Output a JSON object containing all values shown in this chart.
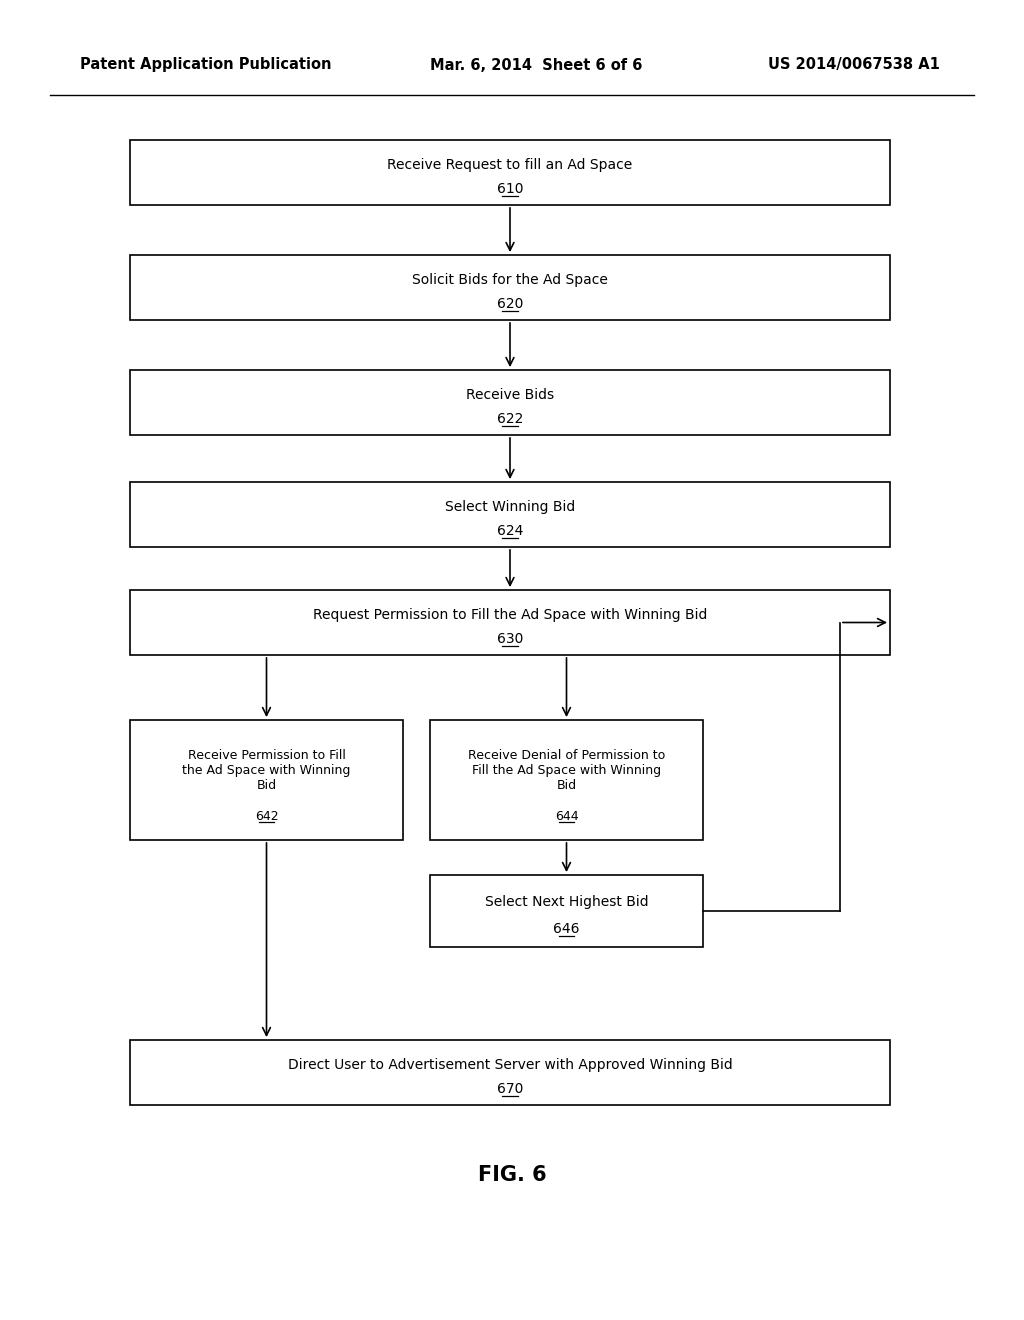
{
  "background_color": "#ffffff",
  "header_left": "Patent Application Publication",
  "header_mid": "Mar. 6, 2014  Sheet 6 of 6",
  "header_right": "US 2014/0067538 A1",
  "fig_label": "FIG. 6",
  "font_size_header": 10.5,
  "font_size_box": 10,
  "font_size_box_small": 9,
  "font_size_fig": 15
}
